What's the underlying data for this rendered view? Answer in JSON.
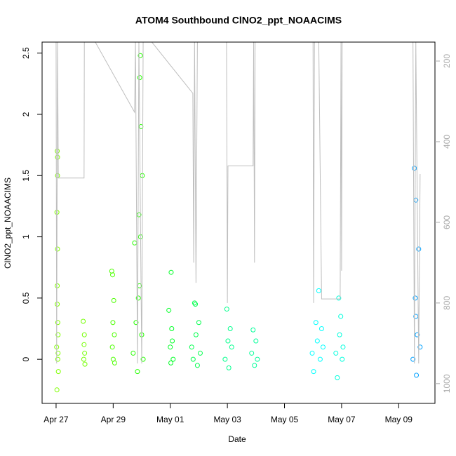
{
  "chart_data": {
    "type": "scatter",
    "title": "ATOM4 Southbound ClNO2_ppt_NOAACIMS",
    "x_label": "Date",
    "y_label": "ClNO2_ppt_NOAACIMS",
    "xlim": [
      -0.49,
      13.27
    ],
    "xticks": [
      {
        "value": 0,
        "label": "Apr 27"
      },
      {
        "value": 2,
        "label": "Apr 29"
      },
      {
        "value": 4,
        "label": "May 01"
      },
      {
        "value": 6,
        "label": "May 03"
      },
      {
        "value": 8,
        "label": "May 05"
      },
      {
        "value": 10,
        "label": "May 07"
      },
      {
        "value": 12,
        "label": "May 09"
      }
    ],
    "ylim": [
      -0.36,
      2.59
    ],
    "yticks": [
      0,
      0.5,
      1,
      1.5,
      2,
      2.5
    ],
    "y2lim": [
      1049,
      153
    ],
    "y2ticks": [
      200,
      400,
      600,
      800,
      1000
    ],
    "series": [
      {
        "color": "#7fff00",
        "x": [
          0.02,
          0.03,
          0.04,
          0.05,
          0.05,
          0.06,
          0.07,
          0.08,
          0.03,
          0.04,
          0.06,
          0.05,
          0.07,
          0.04
        ],
        "values": [
          0.1,
          -0.25,
          1.7,
          1.5,
          0.9,
          0.3,
          0.05,
          -0.1,
          1.2,
          0.6,
          0.0,
          1.65,
          0.2,
          0.45
        ]
      },
      {
        "color": "#73ff00",
        "x": [
          0.95,
          0.97,
          0.98,
          1.0,
          1.01,
          0.99
        ],
        "values": [
          0.31,
          0.0,
          0.12,
          0.05,
          -0.04,
          0.2
        ]
      },
      {
        "color": "#4dff00",
        "x": [
          1.95,
          1.97,
          1.99,
          2.0,
          2.02,
          2.04,
          2.05,
          1.98
        ],
        "values": [
          0.72,
          0.1,
          0.3,
          0.0,
          0.48,
          0.2,
          -0.03,
          0.69
        ]
      },
      {
        "color": "#26ff00",
        "x": [
          2.7,
          2.75,
          2.8,
          2.85,
          2.9,
          2.92,
          2.95,
          2.97,
          3.0,
          3.02,
          2.93,
          2.88,
          2.96,
          3.05
        ],
        "values": [
          0.05,
          0.95,
          0.3,
          -0.1,
          1.18,
          0.6,
          2.48,
          1.9,
          0.2,
          1.5,
          2.3,
          0.5,
          1.0,
          0.0
        ]
      },
      {
        "color": "#00ff26",
        "x": [
          3.95,
          4.0,
          4.03,
          4.05,
          4.1,
          4.02,
          4.07
        ],
        "values": [
          0.4,
          0.1,
          0.71,
          0.25,
          0.0,
          -0.03,
          0.15
        ]
      },
      {
        "color": "#00ff4d",
        "x": [
          4.75,
          4.8,
          4.85,
          4.9,
          4.95,
          5.0,
          5.05,
          4.88
        ],
        "values": [
          0.1,
          0.0,
          0.46,
          0.2,
          -0.05,
          0.3,
          0.05,
          0.45
        ]
      },
      {
        "color": "#00ff8c",
        "x": [
          5.92,
          5.98,
          6.02,
          6.05,
          6.1,
          6.15
        ],
        "values": [
          0.0,
          0.41,
          0.15,
          -0.07,
          0.25,
          0.1
        ]
      },
      {
        "color": "#00ff99",
        "x": [
          6.85,
          6.9,
          6.95,
          7.0,
          7.05
        ],
        "values": [
          0.05,
          0.24,
          -0.05,
          0.15,
          0.0
        ]
      },
      {
        "color": "#00ffff",
        "x": [
          8.97,
          9.02,
          9.1,
          9.15,
          9.2,
          9.25,
          9.3,
          9.35
        ],
        "values": [
          0.05,
          -0.1,
          0.3,
          0.15,
          0.56,
          0.0,
          0.25,
          0.1
        ]
      },
      {
        "color": "#00ffdd",
        "x": [
          9.8,
          9.85,
          9.9,
          9.93,
          9.97,
          10.02,
          10.05
        ],
        "values": [
          0.05,
          -0.15,
          0.5,
          0.2,
          0.35,
          0.0,
          0.1
        ]
      },
      {
        "color": "#00a0ff",
        "x": [
          12.5,
          12.55,
          12.58,
          12.6,
          12.62,
          12.65,
          12.7,
          12.75,
          12.6
        ],
        "values": [
          0.0,
          1.56,
          0.5,
          1.3,
          -0.13,
          0.2,
          0.9,
          0.1,
          0.35
        ]
      },
      {
        "type": "line",
        "axis": "y2",
        "color": "#bebebe",
        "x": [
          0,
          0.02,
          0.05,
          0.08,
          0.98,
          0.99,
          1.35,
          2.75,
          2.78,
          2.85,
          2.9,
          3.0,
          3.05,
          3.32,
          4.79,
          4.82,
          4.85,
          4.9,
          4.95,
          5.97,
          6.0,
          6.02,
          6.9,
          6.92,
          6.95,
          6.97,
          9.0,
          9.02,
          9.05,
          9.2,
          9.3,
          9.95,
          9.98,
          10.0,
          10.02,
          12.5,
          12.55,
          12.6,
          12.7,
          12.75
        ],
        "values": [
          150,
          950,
          150,
          490,
          490,
          150,
          150,
          327,
          150,
          950,
          150,
          950,
          150,
          150,
          280,
          700,
          150,
          750,
          150,
          150,
          800,
          460,
          460,
          150,
          700,
          150,
          150,
          800,
          150,
          150,
          790,
          790,
          150,
          720,
          150,
          150,
          950,
          150,
          950,
          480
        ]
      }
    ]
  }
}
